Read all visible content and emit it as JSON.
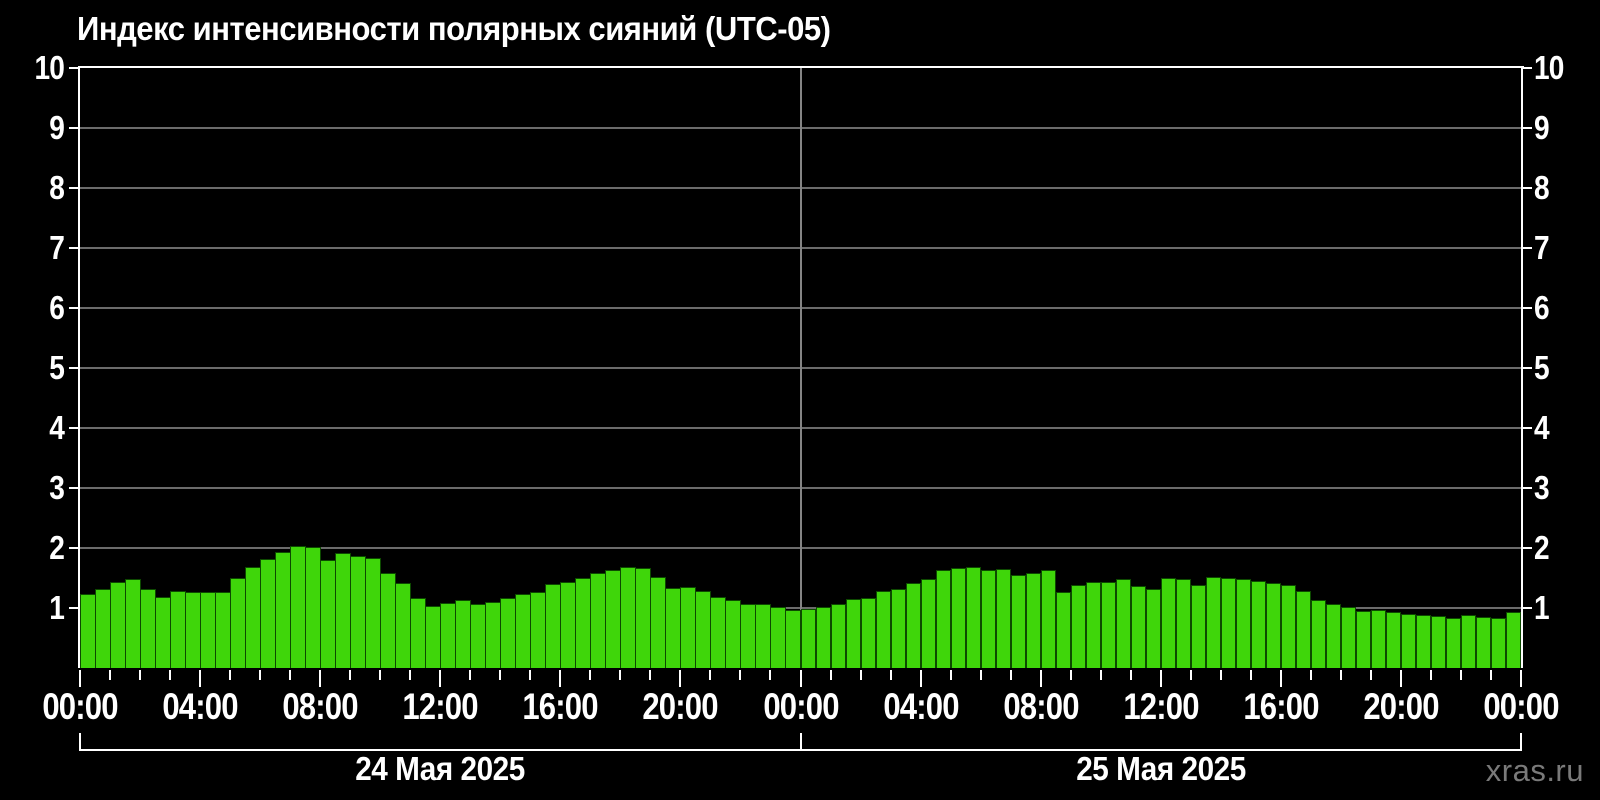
{
  "title": "Индекс интенсивности полярных сияний (UTC-05)",
  "watermark": "xras.ru",
  "colors": {
    "background": "#000000",
    "axis": "#ffffff",
    "text": "#ffffff",
    "grid": "#6b6b6b",
    "day_separator": "#858585",
    "bar_fill": "#3fd60a",
    "bar_edge": "#0d4a00",
    "watermark": "#7a7a7a"
  },
  "chart_data": {
    "type": "bar",
    "title": "Индекс интенсивности полярных сияний (UTC-05)",
    "ylabel": "",
    "xlabel": "",
    "ylim": [
      0,
      10
    ],
    "yticks": [
      1,
      2,
      3,
      4,
      5,
      6,
      7,
      8,
      9,
      10
    ],
    "grid": "horizontal-gray-on-black",
    "interval_minutes": 30,
    "x_tick_labels": [
      "00:00",
      "04:00",
      "08:00",
      "12:00",
      "16:00",
      "20:00",
      "00:00",
      "04:00",
      "08:00",
      "12:00",
      "16:00",
      "20:00",
      "00:00"
    ],
    "days": [
      {
        "date_label": "24 Мая 2025",
        "values": [
          1.23,
          1.32,
          1.43,
          1.48,
          1.32,
          1.18,
          1.28,
          1.27,
          1.27,
          1.27,
          1.5,
          1.69,
          1.81,
          1.93,
          2.04,
          2.02,
          1.8,
          1.91,
          1.87,
          1.83,
          1.58,
          1.41,
          1.17,
          1.04,
          1.08,
          1.13,
          1.07,
          1.1,
          1.17,
          1.23,
          1.27,
          1.4,
          1.43,
          1.5,
          1.58,
          1.63,
          1.68,
          1.66,
          1.52,
          1.34,
          1.35,
          1.28,
          1.18,
          1.13,
          1.06,
          1.07,
          1.01,
          0.97
        ]
      },
      {
        "date_label": "25 Мая 2025",
        "values": [
          0.98,
          1.02,
          1.06,
          1.15,
          1.17,
          1.28,
          1.31,
          1.41,
          1.48,
          1.64,
          1.67,
          1.69,
          1.63,
          1.65,
          1.55,
          1.59,
          1.64,
          1.27,
          1.39,
          1.44,
          1.43,
          1.48,
          1.36,
          1.31,
          1.5,
          1.48,
          1.38,
          1.52,
          1.5,
          1.48,
          1.45,
          1.41,
          1.39,
          1.28,
          1.14,
          1.06,
          1.01,
          0.95,
          0.96,
          0.94,
          0.9,
          0.88,
          0.86,
          0.84,
          0.89,
          0.85,
          0.84,
          0.93
        ]
      }
    ]
  }
}
